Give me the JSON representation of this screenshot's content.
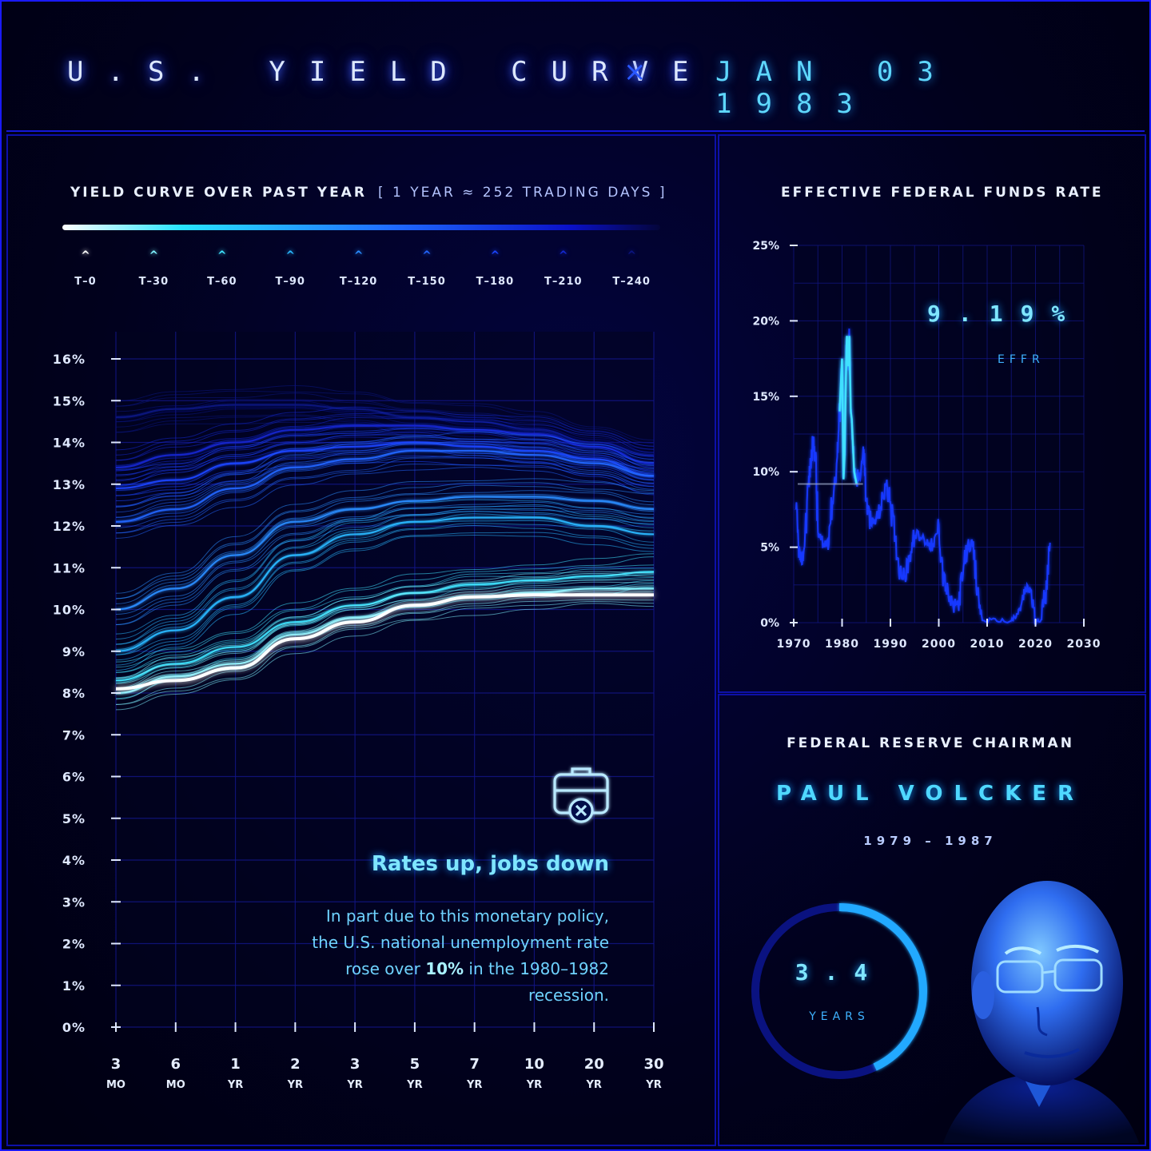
{
  "header": {
    "title": "U.S. YIELD CURVE",
    "separator": "×",
    "date": "JAN 03 1983"
  },
  "yield_panel": {
    "heading": "YIELD CURVE OVER PAST YEAR",
    "subheading": "[ 1 YEAR ≈ 252 TRADING DAYS ]",
    "legend": [
      {
        "label": "T–0",
        "color": "#ffffff"
      },
      {
        "label": "T–30",
        "color": "#7ff3ff"
      },
      {
        "label": "T–60",
        "color": "#3fe4ff"
      },
      {
        "label": "T–90",
        "color": "#29b8ff"
      },
      {
        "label": "T–120",
        "color": "#2a8dff"
      },
      {
        "label": "T–150",
        "color": "#2366ff"
      },
      {
        "label": "T–180",
        "color": "#1b45ff"
      },
      {
        "label": "T–210",
        "color": "#1428d0"
      },
      {
        "label": "T–240",
        "color": "#0b1580"
      }
    ],
    "note_title": "Rates up, jobs down",
    "note_body_1": "In part due to this monetary policy, the U.S. national unemployment rate rose over ",
    "note_body_bold": "10%",
    "note_body_2": " in the 1980–1982 recession."
  },
  "effr_panel": {
    "heading": "EFFECTIVE FEDERAL FUNDS RATE",
    "value": "9.19%",
    "value_label": "EFFR"
  },
  "chair_panel": {
    "heading": "FEDERAL RESERVE CHAIRMAN",
    "name": "PAUL VOLCKER",
    "term": "1979 – 1987",
    "tenure_value": "3.4",
    "tenure_label": "YEARS",
    "tenure_fraction": 0.43
  },
  "chart_data": [
    {
      "type": "line",
      "title": "YIELD CURVE OVER PAST YEAR",
      "x_ticks": [
        {
          "top": "3",
          "bottom": "MO"
        },
        {
          "top": "6",
          "bottom": "MO"
        },
        {
          "top": "1",
          "bottom": "YR"
        },
        {
          "top": "2",
          "bottom": "YR"
        },
        {
          "top": "3",
          "bottom": "YR"
        },
        {
          "top": "5",
          "bottom": "YR"
        },
        {
          "top": "7",
          "bottom": "YR"
        },
        {
          "top": "10",
          "bottom": "YR"
        },
        {
          "top": "20",
          "bottom": "YR"
        },
        {
          "top": "30",
          "bottom": "YR"
        }
      ],
      "y_ticks": [
        "0%",
        "1%",
        "2%",
        "3%",
        "4%",
        "5%",
        "6%",
        "7%",
        "8%",
        "9%",
        "10%",
        "11%",
        "12%",
        "13%",
        "14%",
        "15%",
        "16%"
      ],
      "ylim": [
        0,
        16
      ],
      "grid": true,
      "series": [
        {
          "lag": "T–240",
          "color": "#0b1580",
          "values": [
            14.6,
            14.8,
            14.9,
            14.9,
            14.8,
            14.6,
            14.5,
            14.3,
            14.0,
            13.7
          ]
        },
        {
          "lag": "T–210",
          "color": "#1428d0",
          "values": [
            13.4,
            13.7,
            14.0,
            14.3,
            14.4,
            14.4,
            14.3,
            14.2,
            13.9,
            13.5
          ]
        },
        {
          "lag": "T–180",
          "color": "#1b45ff",
          "values": [
            12.9,
            13.1,
            13.5,
            13.8,
            13.9,
            14.0,
            13.9,
            13.8,
            13.6,
            13.2
          ]
        },
        {
          "lag": "T–150",
          "color": "#2366ff",
          "values": [
            12.1,
            12.4,
            12.9,
            13.4,
            13.6,
            13.8,
            13.8,
            13.7,
            13.5,
            13.2
          ]
        },
        {
          "lag": "T–120",
          "color": "#2a8dff",
          "values": [
            10.0,
            10.5,
            11.3,
            12.1,
            12.4,
            12.6,
            12.7,
            12.7,
            12.6,
            12.4
          ]
        },
        {
          "lag": "T–90",
          "color": "#29b8ff",
          "values": [
            9.0,
            9.5,
            10.3,
            11.3,
            11.8,
            12.1,
            12.2,
            12.2,
            12.0,
            11.8
          ]
        },
        {
          "lag": "T–60",
          "color": "#3fe4ff",
          "values": [
            8.3,
            8.7,
            9.1,
            9.7,
            10.1,
            10.4,
            10.6,
            10.7,
            10.8,
            10.9
          ]
        },
        {
          "lag": "T–30",
          "color": "#7ff3ff",
          "values": [
            8.0,
            8.4,
            8.7,
            9.4,
            9.8,
            10.1,
            10.3,
            10.4,
            10.5,
            10.5
          ]
        },
        {
          "lag": "T–0",
          "color": "#ffffff",
          "values": [
            8.1,
            8.3,
            8.6,
            9.3,
            9.7,
            10.1,
            10.3,
            10.35,
            10.35,
            10.35
          ]
        }
      ]
    },
    {
      "type": "line",
      "title": "EFFECTIVE FEDERAL FUNDS RATE",
      "x_ticks": [
        "1970",
        "1980",
        "1990",
        "2000",
        "2010",
        "2020",
        "2030"
      ],
      "y_ticks": [
        "0%",
        "5%",
        "10%",
        "15%",
        "20%",
        "25%"
      ],
      "xlim": [
        1970,
        2030
      ],
      "ylim": [
        0,
        25
      ],
      "grid": true,
      "marker": {
        "x": 1983.0,
        "y": 9.19
      },
      "series": [
        {
          "name": "EFFR",
          "x": [
            1970.5,
            1971,
            1971.5,
            1972,
            1973,
            1973.5,
            1974,
            1974.5,
            1975,
            1976,
            1977,
            1978,
            1979,
            1979.5,
            1980,
            1980.3,
            1980.5,
            1980.9,
            1981,
            1981.3,
            1981.5,
            1981.8,
            1982,
            1982.5,
            1983,
            1984,
            1984.5,
            1985,
            1986,
            1987,
            1988,
            1989,
            1990,
            1991,
            1992,
            1993,
            1994,
            1995,
            1997,
            1998,
            1999,
            2000,
            2001,
            2002,
            2003,
            2004,
            2005,
            2006,
            2007,
            2008,
            2009,
            2012,
            2015,
            2016,
            2017,
            2018,
            2019,
            2020,
            2021,
            2022,
            2023
          ],
          "y": [
            7.5,
            5.0,
            4.0,
            4.5,
            9.0,
            10.5,
            12.0,
            11.0,
            6.0,
            5.0,
            5.5,
            8.0,
            11.0,
            14.0,
            17.5,
            9.5,
            11.0,
            18.0,
            19.0,
            17.0,
            19.0,
            14.0,
            13.5,
            10.0,
            9.19,
            10.5,
            11.5,
            8.0,
            6.5,
            6.8,
            7.6,
            9.2,
            8.0,
            5.5,
            3.5,
            3.0,
            4.5,
            5.8,
            5.5,
            5.3,
            5.0,
            6.5,
            3.0,
            1.7,
            1.0,
            1.3,
            3.2,
            5.2,
            5.0,
            2.0,
            0.15,
            0.1,
            0.13,
            0.4,
            1.1,
            2.2,
            2.2,
            0.08,
            0.08,
            2.0,
            5.3
          ]
        }
      ]
    }
  ]
}
